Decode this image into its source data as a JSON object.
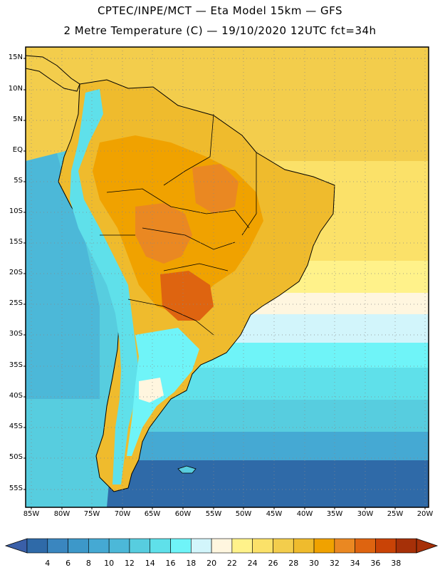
{
  "title": {
    "line1": "CPTEC/INPE/MCT —  Eta Model 15km — GFS",
    "line2": "2 Metre Temperature (C) — 19/10/2020 12UTC fct=34h"
  },
  "map": {
    "lat_ticks": [
      "15N",
      "10N",
      "5N",
      "EQ",
      "5S",
      "10S",
      "15S",
      "20S",
      "25S",
      "30S",
      "35S",
      "40S",
      "45S",
      "50S",
      "55S"
    ],
    "lon_ticks": [
      "85W",
      "80W",
      "75W",
      "70W",
      "65W",
      "60W",
      "55W",
      "50W",
      "45W",
      "40W",
      "35W",
      "30W",
      "25W",
      "20W"
    ]
  },
  "colorbar": {
    "labels": [
      "4",
      "6",
      "8",
      "10",
      "12",
      "14",
      "16",
      "18",
      "20",
      "22",
      "24",
      "26",
      "28",
      "30",
      "32",
      "34",
      "36",
      "38"
    ],
    "colors": [
      "#2f6aa8",
      "#3a86bf",
      "#3d98c9",
      "#45a9d3",
      "#4cb8d8",
      "#57cddf",
      "#5fe0ea",
      "#6ff4f8",
      "#d2f5fb",
      "#fff6df",
      "#fff28a",
      "#fbe169",
      "#f3cd4c",
      "#efbb2d",
      "#f0a200",
      "#ea8822",
      "#de6410",
      "#c94306",
      "#a63008"
    ],
    "under_color": "#3a5fa8",
    "over_color": "#a63008"
  }
}
